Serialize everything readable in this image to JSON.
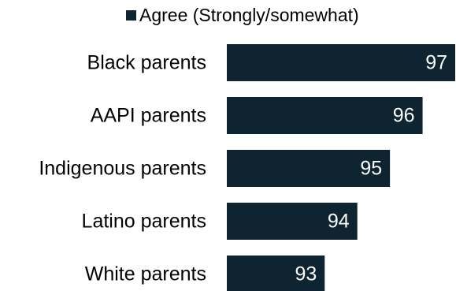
{
  "legend": {
    "label": "Agree (Strongly/somewhat)"
  },
  "chart_data": {
    "type": "bar",
    "orientation": "horizontal",
    "categories": [
      "Black parents",
      "AAPI parents",
      "Indigenous parents",
      "Latino parents",
      "White parents"
    ],
    "series": [
      {
        "name": "Agree (Strongly/somewhat)",
        "values": [
          97,
          96,
          95,
          94,
          93
        ],
        "color": "#0e2430"
      }
    ],
    "data_labels": [
      "97",
      "96",
      "95",
      "94",
      "93"
    ],
    "xlim": [
      90,
      97
    ],
    "legend_position": "top"
  }
}
